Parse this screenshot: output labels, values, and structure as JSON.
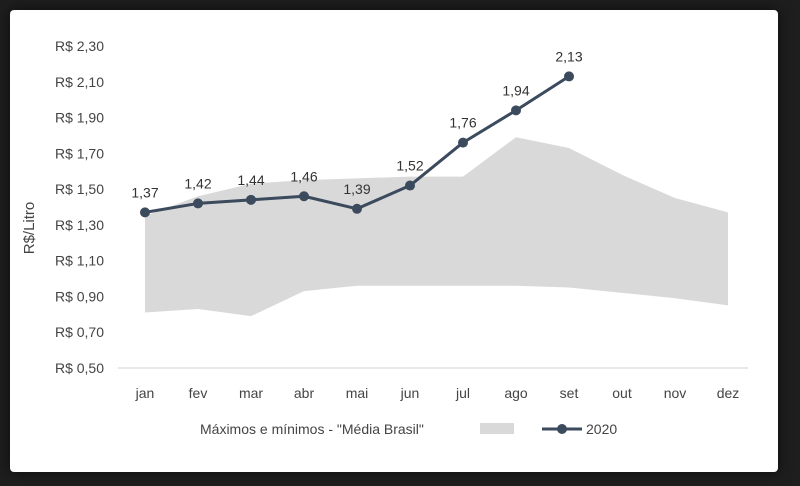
{
  "chart_data": {
    "type": "line",
    "ylabel": "R$/Litro",
    "ylim": [
      0.5,
      2.3
    ],
    "yticks": [
      0.5,
      0.7,
      0.9,
      1.1,
      1.3,
      1.5,
      1.7,
      1.9,
      2.1,
      2.3
    ],
    "ytick_labels": [
      "R$ 0,50",
      "R$ 0,70",
      "R$ 0,90",
      "R$ 1,10",
      "R$ 1,30",
      "R$ 1,50",
      "R$ 1,70",
      "R$ 1,90",
      "R$ 2,10",
      "R$ 2,30"
    ],
    "categories": [
      "jan",
      "fev",
      "mar",
      "abr",
      "mai",
      "jun",
      "jul",
      "ago",
      "set",
      "out",
      "nov",
      "dez"
    ],
    "band": {
      "name": "Máximos e mínimos - \"Média Brasil\"",
      "color": "#d9d9d9",
      "max": [
        1.35,
        1.46,
        1.53,
        1.55,
        1.56,
        1.57,
        1.57,
        1.79,
        1.73,
        1.58,
        1.45,
        1.37
      ],
      "min": [
        0.81,
        0.83,
        0.79,
        0.93,
        0.96,
        0.96,
        0.96,
        0.96,
        0.95,
        0.92,
        0.89,
        0.85
      ]
    },
    "series": [
      {
        "name": "2020",
        "color": "#3b4a5c",
        "values": [
          1.37,
          1.42,
          1.44,
          1.46,
          1.39,
          1.52,
          1.76,
          1.94,
          2.13,
          null,
          null,
          null
        ],
        "labels": [
          "1,37",
          "1,42",
          "1,44",
          "1,46",
          "1,39",
          "1,52",
          "1,76",
          "1,94",
          "2,13",
          "",
          "",
          ""
        ]
      }
    ],
    "grid": false,
    "legend_position": "bottom"
  }
}
